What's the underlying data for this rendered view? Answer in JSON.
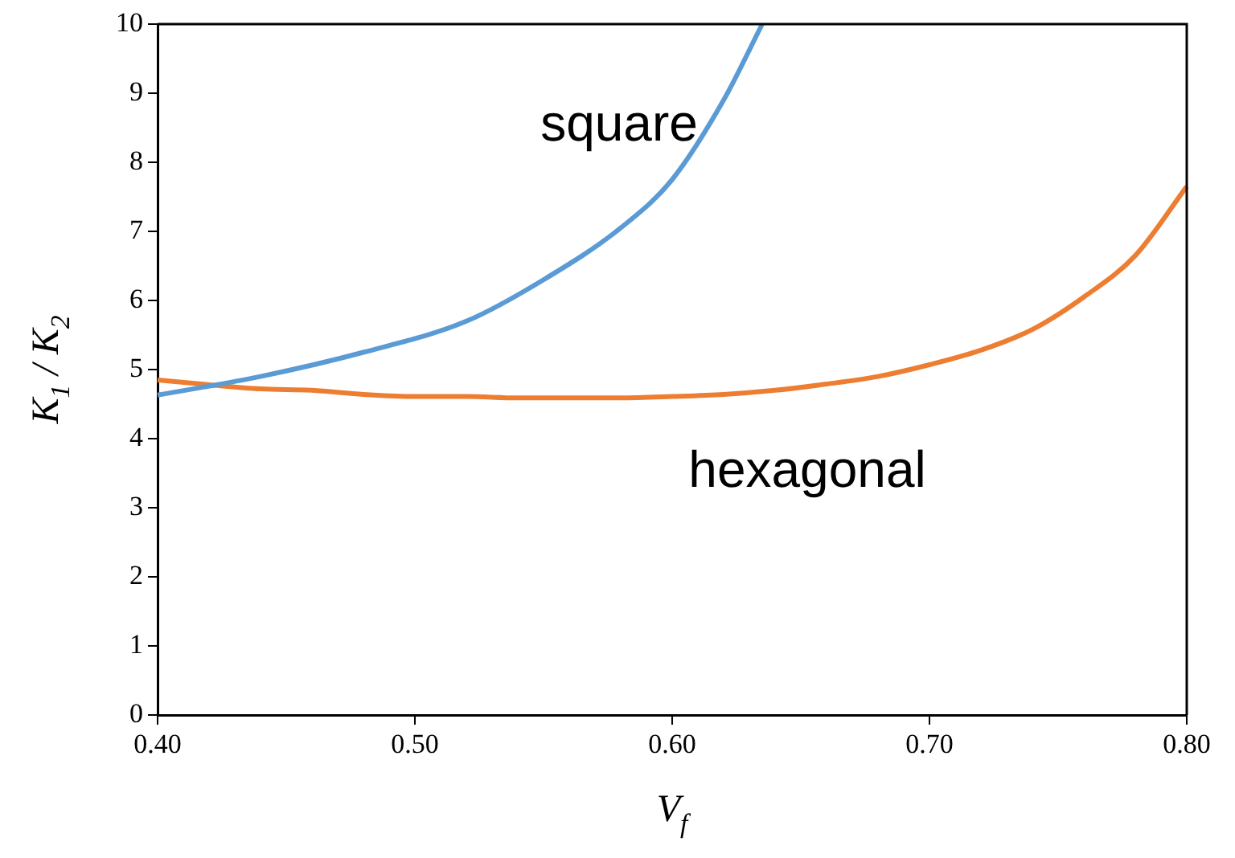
{
  "chart_data": {
    "type": "line",
    "xlabel": "V$_{f}$",
    "ylabel": "K$_{1}$ / K$_{2}$",
    "xlim": [
      0.4,
      0.8
    ],
    "ylim": [
      0,
      10
    ],
    "xticks": [
      {
        "value": 0.4,
        "label": "0.40"
      },
      {
        "value": 0.5,
        "label": "0.50"
      },
      {
        "value": 0.6,
        "label": "0.60"
      },
      {
        "value": 0.7,
        "label": "0.70"
      },
      {
        "value": 0.8,
        "label": "0.80"
      }
    ],
    "yticks": [
      0,
      1,
      2,
      3,
      4,
      5,
      6,
      7,
      8,
      9,
      10
    ],
    "grid": false,
    "legend": false,
    "marker": "none",
    "line_style": "solid",
    "series": [
      {
        "name": "square",
        "color": "#5b9bd5",
        "x": [
          0.4,
          0.44,
          0.48,
          0.52,
          0.55,
          0.58,
          0.6,
          0.62,
          0.635
        ],
        "values": [
          4.63,
          4.9,
          5.25,
          5.7,
          6.3,
          7.05,
          7.75,
          8.9,
          10
        ]
      },
      {
        "name": "hexagonal",
        "color": "#ed7d31",
        "x": [
          0.4,
          0.42,
          0.44,
          0.46,
          0.48,
          0.5,
          0.52,
          0.54,
          0.56,
          0.58,
          0.6,
          0.62,
          0.64,
          0.66,
          0.68,
          0.7,
          0.72,
          0.74,
          0.76,
          0.78,
          0.8
        ],
        "values": [
          4.85,
          4.78,
          4.72,
          4.7,
          4.64,
          4.61,
          4.61,
          4.59,
          4.59,
          4.59,
          4.61,
          4.64,
          4.7,
          4.79,
          4.9,
          5.07,
          5.28,
          5.58,
          6.05,
          6.65,
          7.65
        ]
      }
    ]
  }
}
